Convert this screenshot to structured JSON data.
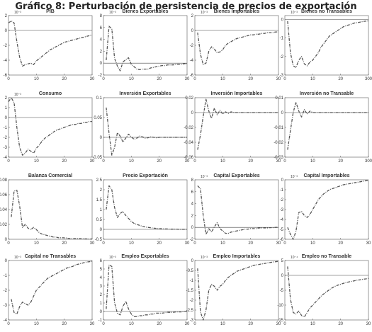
{
  "title": "Gráfico 8: Perturbación de persistencia de precios de exportación",
  "chart_data": [
    {
      "type": "line",
      "title": "PIB",
      "exponent": "10⁻³",
      "xlim": [
        0,
        30
      ],
      "ylim": [
        -6,
        2
      ],
      "xticks": [
        0,
        10,
        20,
        30
      ],
      "yticks": [
        -6,
        -4,
        -2,
        0,
        2
      ],
      "zero_line": true,
      "x": [
        0,
        1,
        2,
        3,
        4,
        5,
        6,
        7,
        8,
        9,
        10,
        11,
        12,
        13,
        14,
        15,
        16,
        17,
        18,
        19,
        20,
        21,
        22,
        23,
        24,
        25,
        26,
        27,
        28,
        29,
        30
      ],
      "y": [
        1.0,
        1.3,
        1.0,
        -1.5,
        -3.6,
        -4.8,
        -4.6,
        -4.5,
        -4.4,
        -4.6,
        -4.1,
        -3.8,
        -3.5,
        -3.2,
        -2.9,
        -2.6,
        -2.4,
        -2.2,
        -2.0,
        -1.8,
        -1.6,
        -1.5,
        -1.4,
        -1.3,
        -1.2,
        -1.1,
        -1.0,
        -0.9,
        -0.8,
        -0.7,
        -0.6
      ]
    },
    {
      "type": "line",
      "title": "Bienes Exportables",
      "exponent": "10⁻³",
      "xlim": [
        0,
        30
      ],
      "ylim": [
        -2,
        8
      ],
      "xticks": [
        0,
        10,
        20,
        30
      ],
      "yticks": [
        -2,
        0,
        2,
        4,
        6,
        8
      ],
      "zero_line": true,
      "x": [
        1,
        2,
        3,
        4,
        5,
        6,
        7,
        8,
        9,
        10,
        11,
        12,
        13,
        14,
        15,
        16,
        17,
        18,
        19,
        20,
        21,
        22,
        23,
        24,
        25,
        26,
        27,
        28,
        29,
        30
      ],
      "y": [
        0.5,
        6.2,
        5.8,
        0.8,
        -0.5,
        -1.3,
        0.2,
        0.6,
        0.9,
        -0.2,
        -0.6,
        -1.0,
        -1.1,
        -1.0,
        -1.0,
        -1.0,
        -0.8,
        -0.7,
        -0.6,
        -0.5,
        -0.4,
        -0.4,
        -0.3,
        -0.3,
        -0.3,
        -0.2,
        -0.2,
        -0.2,
        -0.1,
        -0.1
      ]
    },
    {
      "type": "line",
      "title": "Bienes Importables",
      "exponent": "10⁻³",
      "xlim": [
        0,
        30
      ],
      "ylim": [
        -6,
        2
      ],
      "xticks": [
        0,
        10,
        20,
        30
      ],
      "yticks": [
        -6,
        -4,
        -2,
        0,
        2
      ],
      "zero_line": true,
      "x": [
        1,
        2,
        3,
        4,
        5,
        6,
        7,
        8,
        9,
        10,
        11,
        12,
        13,
        14,
        15,
        16,
        17,
        18,
        19,
        20,
        21,
        22,
        23,
        24,
        25,
        26,
        27,
        28,
        29,
        30
      ],
      "y": [
        -0.3,
        -3.2,
        -4.6,
        -4.4,
        -2.8,
        -2.2,
        -2.5,
        -3.0,
        -2.9,
        -2.6,
        -2.0,
        -1.7,
        -1.5,
        -1.3,
        -1.1,
        -1.0,
        -0.9,
        -0.8,
        -0.7,
        -0.6,
        -0.6,
        -0.5,
        -0.5,
        -0.4,
        -0.4,
        -0.3,
        -0.3,
        -0.3,
        -0.2,
        -0.2
      ]
    },
    {
      "type": "line",
      "title": "Bienes no Transables",
      "exponent": "10⁻³",
      "xlim": [
        0,
        30
      ],
      "ylim": [
        -3,
        0.2
      ],
      "xticks": [
        0,
        10,
        20,
        "300"
      ],
      "yticks": [
        -3,
        -2,
        -1,
        0
      ],
      "zero_line": true,
      "x": [
        1,
        2,
        3,
        4,
        5,
        6,
        7,
        8,
        9,
        10,
        11,
        12,
        13,
        14,
        15,
        16,
        17,
        18,
        19,
        20,
        21,
        22,
        23,
        24,
        25,
        26,
        27,
        28,
        29,
        30
      ],
      "y": [
        -0.1,
        -1.8,
        -2.5,
        -2.6,
        -2.2,
        -2.0,
        -2.4,
        -2.5,
        -2.3,
        -2.2,
        -2.0,
        -1.8,
        -1.5,
        -1.3,
        -1.1,
        -0.9,
        -0.8,
        -0.7,
        -0.6,
        -0.5,
        -0.4,
        -0.35,
        -0.3,
        -0.25,
        -0.2,
        -0.18,
        -0.15,
        -0.12,
        -0.1,
        -0.08
      ]
    },
    {
      "type": "line",
      "title": "Consumo",
      "exponent": "10⁻³",
      "xlim": [
        0,
        30
      ],
      "ylim": [
        -4,
        2
      ],
      "xticks": [
        0,
        10,
        20,
        30
      ],
      "yticks": [
        -4,
        -3,
        -2,
        -1,
        0,
        1,
        2
      ],
      "zero_line": true,
      "x": [
        0,
        1,
        2,
        3,
        4,
        5,
        6,
        7,
        8,
        9,
        10,
        11,
        12,
        13,
        14,
        15,
        16,
        17,
        18,
        19,
        20,
        21,
        22,
        23,
        24,
        25,
        26,
        27,
        28,
        29,
        30
      ],
      "y": [
        1.6,
        2.0,
        1.5,
        -1.0,
        -3.0,
        -3.8,
        -3.6,
        -3.2,
        -3.4,
        -3.6,
        -3.1,
        -2.8,
        -2.4,
        -2.1,
        -1.9,
        -1.7,
        -1.5,
        -1.3,
        -1.2,
        -1.1,
        -1.0,
        -0.9,
        -0.8,
        -0.7,
        -0.7,
        -0.6,
        -0.6,
        -0.5,
        -0.5,
        -0.4,
        -0.4
      ]
    },
    {
      "type": "line",
      "title": "Inversión Exportables",
      "xlim": [
        0,
        30
      ],
      "ylim": [
        -0.05,
        0.1
      ],
      "xticks": [
        0,
        10,
        20,
        30
      ],
      "yticks": [
        -0.05,
        0,
        0.05,
        0.1
      ],
      "zero_line": true,
      "x": [
        1,
        2,
        3,
        4,
        5,
        6,
        7,
        8,
        9,
        10,
        11,
        12,
        13,
        14,
        15,
        16,
        17,
        18,
        19,
        20,
        21,
        22,
        23,
        24,
        25,
        26,
        27,
        28,
        29,
        30
      ],
      "y": [
        0.075,
        0.01,
        -0.045,
        -0.025,
        0.012,
        0.003,
        -0.012,
        -0.002,
        0.008,
        0.001,
        -0.005,
        -0.002,
        0.003,
        0.001,
        -0.002,
        -0.001,
        0.001,
        0.0,
        -0.001,
        0.0,
        0.0,
        0.0,
        0.0,
        0.0,
        0.0,
        0.0,
        0.0,
        0.0,
        0.0,
        0.0
      ]
    },
    {
      "type": "line",
      "title": "Inversión Importables",
      "xlim": [
        0,
        30
      ],
      "ylim": [
        -0.06,
        0.02
      ],
      "xticks": [
        0,
        10,
        20,
        30
      ],
      "yticks": [
        -0.06,
        -0.04,
        -0.02,
        0,
        0.02
      ],
      "zero_line": true,
      "x": [
        1,
        2,
        3,
        4,
        5,
        6,
        7,
        8,
        9,
        10,
        11,
        12,
        13,
        14,
        15,
        16,
        17,
        18,
        19,
        20,
        21,
        22,
        23,
        24,
        25,
        26,
        27,
        28,
        29,
        30
      ],
      "y": [
        -0.05,
        -0.03,
        -0.005,
        0.018,
        0.002,
        -0.008,
        0.006,
        -0.003,
        0.003,
        -0.002,
        0.001,
        -0.001,
        0.001,
        0.0,
        0.0,
        0.0,
        0.0,
        0.0,
        0.0,
        0.0,
        0.0,
        0.0,
        0.0,
        0.0,
        0.0,
        0.0,
        0.0,
        0.0,
        0.0,
        0.0
      ]
    },
    {
      "type": "line",
      "title": "Inversión no Transable",
      "xlim": [
        0,
        30
      ],
      "ylim": [
        -0.03,
        0.01
      ],
      "xticks": [
        0,
        10,
        20,
        "300"
      ],
      "yticks": [
        -0.03,
        -0.02,
        -0.01,
        0,
        0.01
      ],
      "zero_line": true,
      "x": [
        1,
        2,
        3,
        4,
        5,
        6,
        7,
        8,
        9,
        10,
        11,
        12,
        13,
        14,
        15,
        16,
        17,
        18,
        19,
        20,
        21,
        22,
        23,
        24,
        25,
        26,
        27,
        28,
        29,
        30
      ],
      "y": [
        -0.025,
        -0.012,
        0.0,
        0.007,
        0.001,
        -0.003,
        0.002,
        -0.001,
        0.001,
        0.0,
        0.0,
        0.0,
        0.0,
        0.0,
        0.0,
        0.0,
        0.0,
        0.0,
        0.0,
        0.0,
        0.0,
        0.0,
        0.0,
        0.0,
        0.0,
        0.0,
        0.0,
        0.0,
        0.0,
        0.0
      ]
    },
    {
      "type": "line",
      "title": "Balanza Comercial",
      "xlim": [
        0,
        30
      ],
      "ylim": [
        0,
        0.08
      ],
      "xticks": [
        0,
        10,
        20,
        30
      ],
      "yticks": [
        0,
        0.02,
        0.04,
        0.06,
        0.08
      ],
      "zero_line": false,
      "x": [
        1,
        2,
        3,
        4,
        5,
        6,
        7,
        8,
        9,
        10,
        11,
        12,
        13,
        14,
        15,
        16,
        17,
        18,
        19,
        20,
        21,
        22,
        23,
        24,
        25,
        26,
        27,
        28,
        29,
        30
      ],
      "y": [
        0.03,
        0.065,
        0.066,
        0.045,
        0.016,
        0.02,
        0.015,
        0.013,
        0.016,
        0.013,
        0.009,
        0.007,
        0.006,
        0.005,
        0.004,
        0.003,
        0.003,
        0.002,
        0.002,
        0.002,
        0.0015,
        0.001,
        0.001,
        0.001,
        0.001,
        0.0008,
        0.0006,
        0.0005,
        0.0004,
        0.0003
      ]
    },
    {
      "type": "line",
      "title": "Precio Exportación",
      "xlim": [
        0,
        30
      ],
      "ylim": [
        -0.5,
        2.5
      ],
      "xticks": [
        0,
        10,
        20,
        30
      ],
      "yticks": [
        -0.5,
        0,
        0.5,
        1,
        1.5,
        2,
        2.5
      ],
      "zero_line": true,
      "x": [
        1,
        2,
        3,
        4,
        5,
        6,
        7,
        8,
        9,
        10,
        11,
        12,
        13,
        14,
        15,
        16,
        17,
        18,
        19,
        20,
        21,
        22,
        23,
        24,
        25,
        26,
        27,
        28,
        29,
        30
      ],
      "y": [
        1.0,
        2.2,
        2.0,
        1.1,
        0.6,
        0.8,
        0.9,
        0.7,
        0.55,
        0.4,
        0.3,
        0.25,
        0.2,
        0.15,
        0.12,
        0.1,
        0.08,
        0.06,
        0.05,
        0.04,
        0.03,
        0.02,
        0.02,
        0.01,
        0.01,
        0.01,
        0.0,
        0.0,
        0.0,
        0.0
      ]
    },
    {
      "type": "line",
      "title": "Capital Exportables",
      "exponent": "10⁻³",
      "xlim": [
        0,
        30
      ],
      "ylim": [
        -2,
        8
      ],
      "xticks": [
        0,
        10,
        20,
        30
      ],
      "yticks": [
        -2,
        0,
        2,
        4,
        6,
        8
      ],
      "zero_line": true,
      "x": [
        1,
        2,
        3,
        4,
        5,
        6,
        7,
        8,
        9,
        10,
        11,
        12,
        13,
        14,
        15,
        16,
        17,
        18,
        19,
        20,
        21,
        22,
        23,
        24,
        25,
        26,
        27,
        28,
        29,
        30
      ],
      "y": [
        7.0,
        6.5,
        2.0,
        -1.2,
        -0.2,
        -0.8,
        0.1,
        0.8,
        -0.2,
        -0.6,
        -1.0,
        -1.0,
        -0.8,
        -0.7,
        -0.6,
        -0.5,
        -0.4,
        -0.3,
        -0.3,
        -0.2,
        -0.2,
        -0.2,
        -0.1,
        -0.1,
        -0.1,
        -0.1,
        -0.05,
        -0.05,
        0.0,
        0.0
      ]
    },
    {
      "type": "line",
      "title": "Capital Importables",
      "exponent": "10⁻³",
      "xlim": [
        0,
        30
      ],
      "ylim": [
        -6,
        0
      ],
      "xticks": [
        0,
        10,
        20,
        30
      ],
      "yticks": [
        -6,
        -5,
        -4,
        -3,
        -2,
        -1,
        0
      ],
      "zero_line": false,
      "x": [
        1,
        2,
        3,
        4,
        5,
        6,
        7,
        8,
        9,
        10,
        11,
        12,
        13,
        14,
        15,
        16,
        17,
        18,
        19,
        20,
        21,
        22,
        23,
        24,
        25,
        26,
        27,
        28,
        29,
        30
      ],
      "y": [
        -4.8,
        -5.5,
        -6.0,
        -5.2,
        -3.3,
        -3.2,
        -3.6,
        -3.8,
        -3.5,
        -3.0,
        -2.5,
        -2.0,
        -1.7,
        -1.4,
        -1.2,
        -1.0,
        -0.9,
        -0.8,
        -0.7,
        -0.6,
        -0.5,
        -0.45,
        -0.4,
        -0.35,
        -0.3,
        -0.25,
        -0.2,
        -0.15,
        -0.1,
        -0.05
      ]
    },
    {
      "type": "line",
      "title": "Capital no Transables",
      "exponent": "10⁻³",
      "xlim": [
        0,
        30
      ],
      "ylim": [
        -4,
        0
      ],
      "xticks": [
        0,
        10,
        20,
        30
      ],
      "yticks": [
        -4,
        -3,
        -2,
        -1,
        0
      ],
      "zero_line": false,
      "x": [
        1,
        2,
        3,
        4,
        5,
        6,
        7,
        8,
        9,
        10,
        11,
        12,
        13,
        14,
        15,
        16,
        17,
        18,
        19,
        20,
        21,
        22,
        23,
        24,
        25,
        26,
        27,
        28,
        29,
        30
      ],
      "y": [
        -2.6,
        -3.5,
        -3.6,
        -3.1,
        -2.8,
        -2.9,
        -3.0,
        -2.8,
        -2.4,
        -2.0,
        -1.8,
        -1.6,
        -1.4,
        -1.2,
        -1.1,
        -1.0,
        -0.9,
        -0.8,
        -0.7,
        -0.6,
        -0.5,
        -0.45,
        -0.4,
        -0.3,
        -0.25,
        -0.2,
        -0.15,
        -0.1,
        -0.08,
        -0.05
      ]
    },
    {
      "type": "line",
      "title": "Empleo Exportables",
      "exponent": "10⁻³",
      "xlim": [
        0,
        30
      ],
      "ylim": [
        -1,
        6
      ],
      "xticks": [
        0,
        10,
        20,
        30
      ],
      "yticks": [
        -1,
        0,
        1,
        2,
        3,
        4,
        5,
        6
      ],
      "zero_line": true,
      "x": [
        1,
        2,
        3,
        4,
        5,
        6,
        7,
        8,
        9,
        10,
        11,
        12,
        13,
        14,
        15,
        16,
        17,
        18,
        19,
        20,
        21,
        22,
        23,
        24,
        25,
        26,
        27,
        28,
        29,
        30
      ],
      "y": [
        0.3,
        5.5,
        5.3,
        1.0,
        -0.2,
        -0.4,
        0.6,
        1.2,
        0.3,
        -0.3,
        -0.6,
        -0.6,
        -0.5,
        -0.5,
        -0.4,
        -0.4,
        -0.3,
        -0.3,
        -0.2,
        -0.2,
        -0.2,
        -0.15,
        -0.1,
        -0.1,
        -0.1,
        -0.05,
        -0.05,
        -0.05,
        0.0,
        0.0
      ]
    },
    {
      "type": "line",
      "title": "Empleo Importables",
      "exponent": "10⁻³",
      "xlim": [
        0,
        30
      ],
      "ylim": [
        -3,
        0
      ],
      "xticks": [
        0,
        10,
        20,
        30
      ],
      "yticks": [
        -3,
        -2.5,
        -2,
        -1.5,
        -1,
        -0.5,
        0
      ],
      "zero_line": false,
      "x": [
        1,
        2,
        3,
        4,
        5,
        6,
        7,
        8,
        9,
        10,
        11,
        12,
        13,
        14,
        15,
        16,
        17,
        18,
        19,
        20,
        21,
        22,
        23,
        24,
        25,
        26,
        27,
        28,
        29,
        30
      ],
      "y": [
        -0.4,
        -2.6,
        -3.0,
        -2.5,
        -1.5,
        -1.2,
        -1.3,
        -1.5,
        -1.3,
        -1.2,
        -1.0,
        -0.85,
        -0.75,
        -0.65,
        -0.55,
        -0.5,
        -0.45,
        -0.4,
        -0.35,
        -0.3,
        -0.25,
        -0.22,
        -0.2,
        -0.17,
        -0.15,
        -0.12,
        -0.1,
        -0.08,
        -0.06,
        -0.04
      ]
    },
    {
      "type": "line",
      "title": "Empleo no Transable",
      "exponent": "10⁻⁴",
      "xlim": [
        0,
        30
      ],
      "ylim": [
        -15,
        5
      ],
      "xticks": [
        0,
        10,
        20,
        30
      ],
      "yticks": [
        -15,
        -10,
        -5,
        0,
        5
      ],
      "zero_line": true,
      "x": [
        1,
        2,
        3,
        4,
        5,
        6,
        7,
        8,
        9,
        10,
        11,
        12,
        13,
        14,
        15,
        16,
        17,
        18,
        19,
        20,
        21,
        22,
        23,
        24,
        25,
        26,
        27,
        28,
        29,
        30
      ],
      "y": [
        3.0,
        -8.0,
        -12.5,
        -13.0,
        -12.0,
        -13.5,
        -14.0,
        -12.5,
        -11.0,
        -10.0,
        -9.0,
        -8.0,
        -7.0,
        -6.2,
        -5.5,
        -4.8,
        -4.2,
        -3.7,
        -3.3,
        -3.0,
        -2.7,
        -2.4,
        -2.2,
        -2.0,
        -1.8,
        -1.6,
        -1.5,
        -1.3,
        -1.2,
        -1.0
      ]
    }
  ]
}
